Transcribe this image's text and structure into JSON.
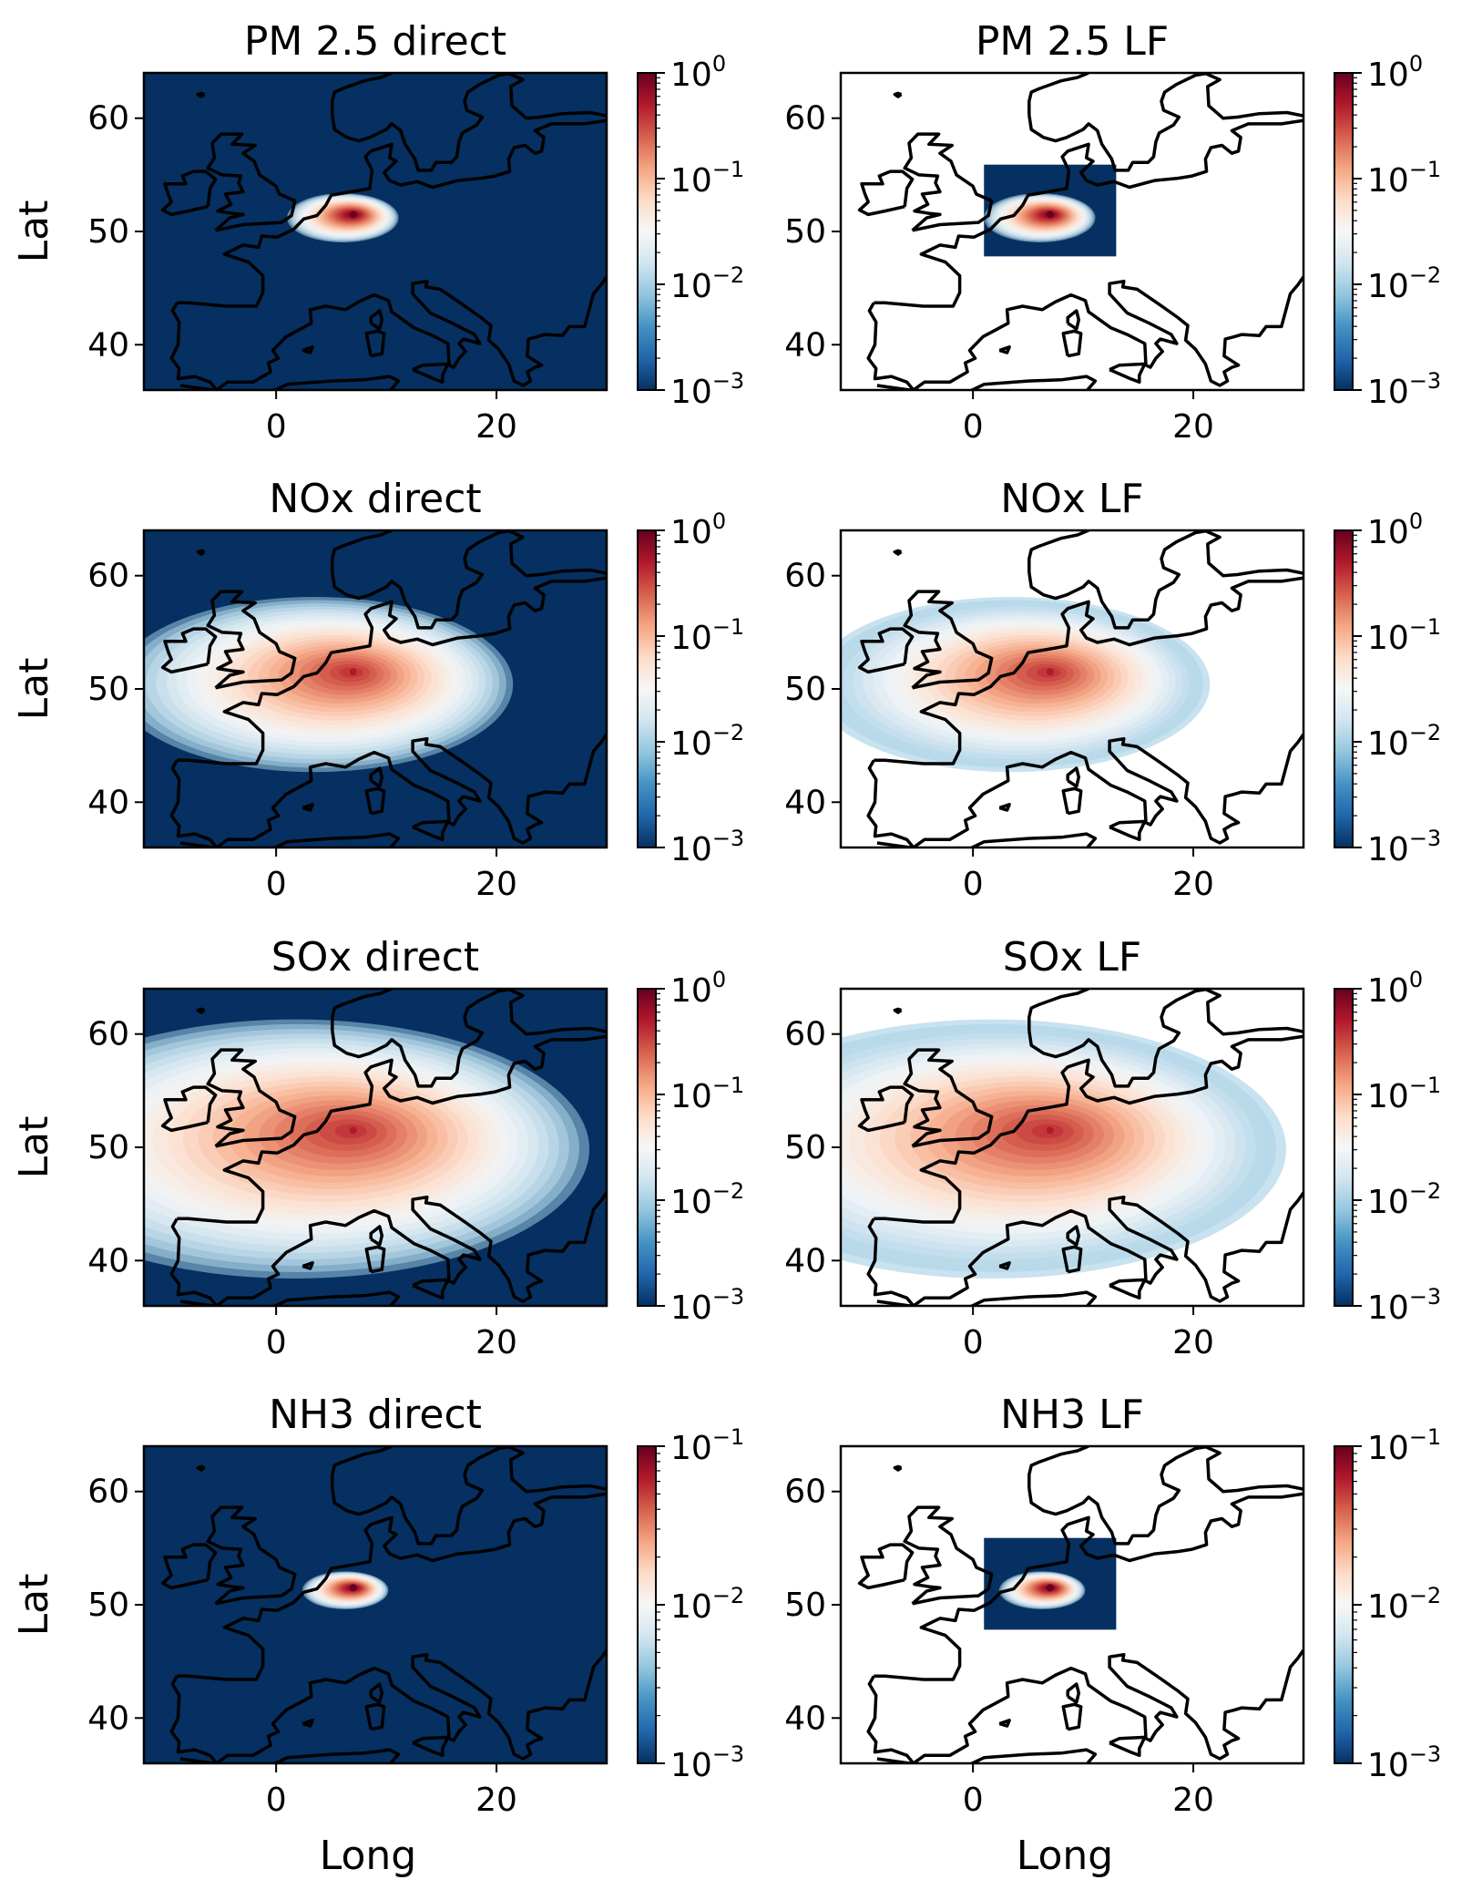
{
  "chart_data": [
    {
      "type": "heatmap",
      "title": "PM 2.5 direct",
      "domain": "full",
      "xlabel": "",
      "ylabel": "Lat",
      "xticks": [
        "0",
        "20"
      ],
      "yticks": [
        "40",
        "50",
        "60"
      ],
      "xlim": [
        -12,
        30
      ],
      "ylim": [
        36,
        64
      ],
      "colorbar": {
        "scale": "log",
        "ticks": [
          "10",
          "10",
          "10",
          "10"
        ],
        "exponents": [
          "0",
          "−1",
          "−2",
          "−3"
        ],
        "range": [
          0.001,
          1
        ]
      },
      "plume": {
        "source_lon": 7,
        "source_lat": 51.5,
        "peak": 1.0,
        "spread": 0.1
      }
    },
    {
      "type": "heatmap",
      "title": "PM 2.5 LF",
      "domain": "box",
      "box_lon": [
        1,
        13
      ],
      "box_lat": [
        47.8,
        55.9
      ],
      "xlabel": "",
      "ylabel": "",
      "xticks": [
        "0",
        "20"
      ],
      "yticks": [
        "40",
        "50",
        "60"
      ],
      "xlim": [
        -12,
        30
      ],
      "ylim": [
        36,
        64
      ],
      "colorbar": {
        "scale": "log",
        "ticks": [
          "10",
          "10",
          "10",
          "10"
        ],
        "exponents": [
          "0",
          "−1",
          "−2",
          "−3"
        ],
        "range": [
          0.001,
          1
        ]
      },
      "plume": {
        "source_lon": 7,
        "source_lat": 51.5,
        "peak": 1.0,
        "spread": 0.1
      }
    },
    {
      "type": "heatmap",
      "title": "NOx direct",
      "domain": "full",
      "xlabel": "",
      "ylabel": "Lat",
      "xticks": [
        "0",
        "20"
      ],
      "yticks": [
        "40",
        "50",
        "60"
      ],
      "xlim": [
        -12,
        30
      ],
      "ylim": [
        36,
        64
      ],
      "colorbar": {
        "scale": "log",
        "ticks": [
          "10",
          "10",
          "10",
          "10"
        ],
        "exponents": [
          "0",
          "−1",
          "−2",
          "−3"
        ],
        "range": [
          0.001,
          1
        ]
      },
      "plume": {
        "source_lon": 7,
        "source_lat": 51.5,
        "peak": 0.5,
        "spread": 0.55
      }
    },
    {
      "type": "heatmap",
      "title": "NOx LF",
      "domain": "box",
      "box_lon": [
        1,
        13
      ],
      "box_lat": [
        47.8,
        55.9
      ],
      "xlabel": "",
      "ylabel": "",
      "xticks": [
        "0",
        "20"
      ],
      "yticks": [
        "40",
        "50",
        "60"
      ],
      "xlim": [
        -12,
        30
      ],
      "ylim": [
        36,
        64
      ],
      "colorbar": {
        "scale": "log",
        "ticks": [
          "10",
          "10",
          "10",
          "10"
        ],
        "exponents": [
          "0",
          "−1",
          "−2",
          "−3"
        ],
        "range": [
          0.001,
          1
        ]
      },
      "plume": {
        "source_lon": 7,
        "source_lat": 51.5,
        "peak": 0.5,
        "spread": 0.55
      }
    },
    {
      "type": "heatmap",
      "title": "SOx direct",
      "domain": "full",
      "xlabel": "",
      "ylabel": "Lat",
      "xticks": [
        "0",
        "20"
      ],
      "yticks": [
        "40",
        "50",
        "60"
      ],
      "xlim": [
        -12,
        30
      ],
      "ylim": [
        36,
        64
      ],
      "colorbar": {
        "scale": "log",
        "ticks": [
          "10",
          "10",
          "10",
          "10"
        ],
        "exponents": [
          "0",
          "−1",
          "−2",
          "−3"
        ],
        "range": [
          0.001,
          1
        ]
      },
      "plume": {
        "source_lon": 7,
        "source_lat": 51.5,
        "peak": 0.5,
        "spread": 0.85
      }
    },
    {
      "type": "heatmap",
      "title": "SOx LF",
      "domain": "box",
      "box_lon": [
        1,
        13
      ],
      "box_lat": [
        47.8,
        55.9
      ],
      "xlabel": "",
      "ylabel": "",
      "xticks": [
        "0",
        "20"
      ],
      "yticks": [
        "40",
        "50",
        "60"
      ],
      "xlim": [
        -12,
        30
      ],
      "ylim": [
        36,
        64
      ],
      "colorbar": {
        "scale": "log",
        "ticks": [
          "10",
          "10",
          "10",
          "10"
        ],
        "exponents": [
          "0",
          "−1",
          "−2",
          "−3"
        ],
        "range": [
          0.001,
          1
        ]
      },
      "plume": {
        "source_lon": 7,
        "source_lat": 51.5,
        "peak": 0.5,
        "spread": 0.85
      }
    },
    {
      "type": "heatmap",
      "title": "NH3 direct",
      "domain": "full",
      "xlabel": "Long",
      "ylabel": "Lat",
      "xticks": [
        "0",
        "20"
      ],
      "yticks": [
        "40",
        "50",
        "60"
      ],
      "xlim": [
        -12,
        30
      ],
      "ylim": [
        36,
        64
      ],
      "colorbar": {
        "scale": "log",
        "ticks": [
          "10",
          "10",
          "10"
        ],
        "exponents": [
          "−1",
          "−2",
          "−3"
        ],
        "range": [
          0.001,
          0.1
        ]
      },
      "plume": {
        "source_lon": 7,
        "source_lat": 51.5,
        "peak": 0.1,
        "spread": 0.06
      }
    },
    {
      "type": "heatmap",
      "title": "NH3 LF",
      "domain": "box",
      "box_lon": [
        1,
        13
      ],
      "box_lat": [
        47.8,
        55.9
      ],
      "xlabel": "Long",
      "ylabel": "",
      "xticks": [
        "0",
        "20"
      ],
      "yticks": [
        "40",
        "50",
        "60"
      ],
      "xlim": [
        -12,
        30
      ],
      "ylim": [
        36,
        64
      ],
      "colorbar": {
        "scale": "log",
        "ticks": [
          "10",
          "10",
          "10"
        ],
        "exponents": [
          "−1",
          "−2",
          "−3"
        ],
        "range": [
          0.001,
          0.1
        ]
      },
      "plume": {
        "source_lon": 7,
        "source_lat": 51.5,
        "peak": 0.1,
        "spread": 0.06
      }
    }
  ],
  "colors": {
    "low": "#053061",
    "mid": "#f7f7f7",
    "high": "#67001f",
    "coast": "#000000"
  }
}
